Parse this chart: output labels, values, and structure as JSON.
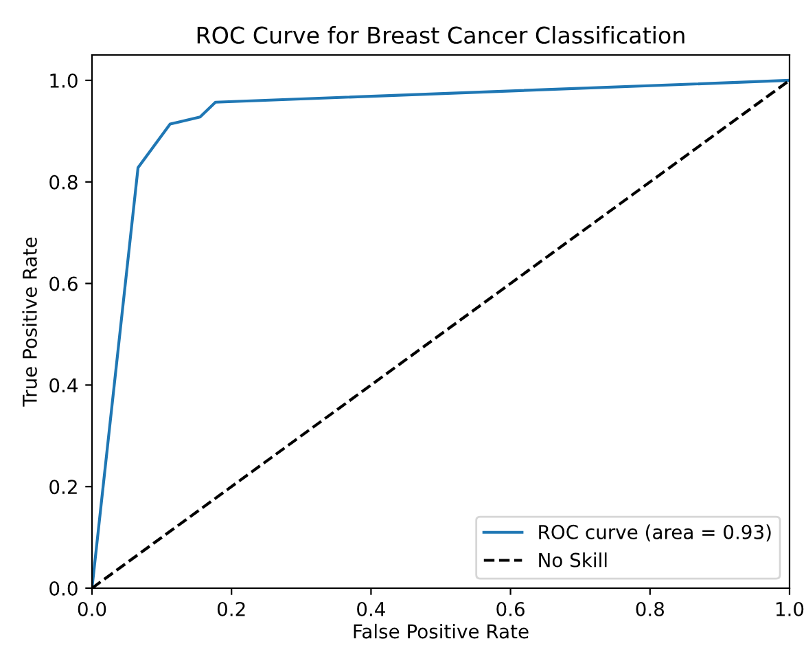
{
  "chart_data": {
    "type": "line",
    "title": "ROC Curve for Breast Cancer Classification",
    "xlabel": "False Positive Rate",
    "ylabel": "True Positive Rate",
    "series": [
      {
        "name": "ROC curve (area = 0.93)",
        "color": "#1f77b4",
        "x": [
          0,
          0.066,
          0.112,
          0.155,
          0.177,
          1
        ],
        "values": [
          0,
          0.828,
          0.914,
          0.928,
          0.957,
          1
        ],
        "line_style": "solid"
      },
      {
        "name": "No Skill",
        "color": "#000000",
        "x": [
          0,
          1
        ],
        "values": [
          0,
          1
        ],
        "line_style": "dashed"
      }
    ],
    "xlim": [
      0,
      1
    ],
    "ylim": [
      0,
      1.05
    ],
    "xticks": [
      {
        "value": 0,
        "label": "0.0"
      },
      0.2,
      0.4,
      0.6,
      0.8,
      {
        "value": 1,
        "label": "1.0"
      }
    ],
    "yticks": [
      {
        "value": 0,
        "label": "0.0"
      },
      0.2,
      0.4,
      0.6,
      0.8,
      {
        "value": 1,
        "label": "1.0"
      }
    ],
    "grid": false,
    "legend": "lower right",
    "marker": "none"
  }
}
